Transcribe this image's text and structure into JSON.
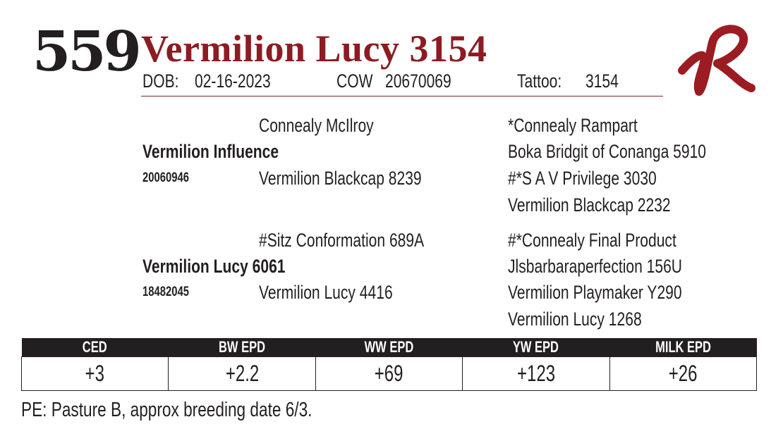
{
  "lot_number": "559",
  "name": "Vermilion Lucy 3154",
  "dob_label": "DOB:",
  "dob": "02-16-2023",
  "reg_label": "COW",
  "reg_number": "20670069",
  "tattoo_label": "Tattoo:",
  "tattoo": "3154",
  "logo": {
    "text": "VR",
    "color": "#9b1c22"
  },
  "pedigree": {
    "sire": {
      "name": "Vermilion Influence",
      "reg": "20060946",
      "sire": "Connealy McIlroy",
      "dam": "Vermilion Blackcap 8239",
      "ss": "*Connealy Rampart",
      "sd": "Boka Bridgit of Conanga 5910",
      "ds": "#*S A V Privilege 3030",
      "dd": "Vermilion Blackcap 2232"
    },
    "dam": {
      "name": "Vermilion Lucy 6061",
      "reg": "18482045",
      "sire": "#Sitz Conformation 689A",
      "dam": "Vermilion Lucy 4416",
      "ss": "#*Connealy Final Product",
      "sd": "Jlsbarbaraperfection 156U",
      "ds": "Vermilion Playmaker Y290",
      "dd": "Vermilion Lucy 1268"
    }
  },
  "epd": {
    "headers": [
      "CED",
      "BW EPD",
      "WW EPD",
      "YW EPD",
      "MILK EPD"
    ],
    "values": [
      "+3",
      "+2.2",
      "+69",
      "+123",
      "+26"
    ]
  },
  "footnote": "PE: Pasture B, approx breeding date 6/3."
}
